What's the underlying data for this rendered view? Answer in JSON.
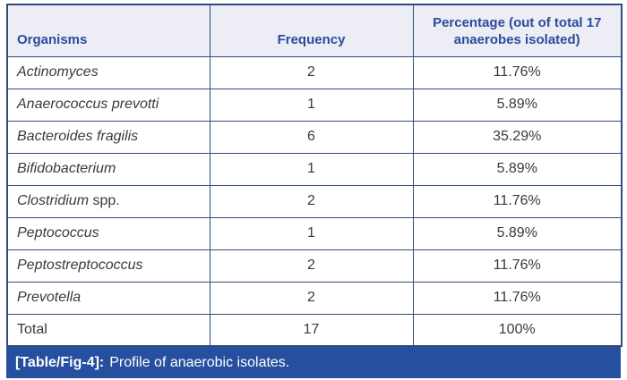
{
  "colors": {
    "page_bg": "#ffffff",
    "header_bg": "#ecedf5",
    "header_text": "#2b4c9b",
    "border": "#2e4d7e",
    "body_text": "#3a3a3a",
    "caption_bg": "#26509f",
    "caption_text": "#ffffff"
  },
  "table": {
    "headers": [
      "Organisms",
      "Frequency",
      "Percentage (out of total 17 anaerobes isolated)"
    ],
    "rows": [
      {
        "name_italic": "Actinomyces",
        "name_rest": "",
        "frequency": "2",
        "percentage": "11.76%"
      },
      {
        "name_italic": "Anaerococcus prevotti",
        "name_rest": "",
        "frequency": "1",
        "percentage": "5.89%"
      },
      {
        "name_italic": "Bacteroides fragilis",
        "name_rest": "",
        "frequency": "6",
        "percentage": "35.29%"
      },
      {
        "name_italic": "Bifidobacterium",
        "name_rest": "",
        "frequency": "1",
        "percentage": "5.89%"
      },
      {
        "name_italic": "Clostridium",
        "name_rest": " spp.",
        "frequency": "2",
        "percentage": "11.76%"
      },
      {
        "name_italic": "Peptococcus",
        "name_rest": "",
        "frequency": "1",
        "percentage": "5.89%"
      },
      {
        "name_italic": "Peptostreptococcus",
        "name_rest": "",
        "frequency": "2",
        "percentage": "11.76%"
      },
      {
        "name_italic": "Prevotella",
        "name_rest": "",
        "frequency": "2",
        "percentage": "11.76%"
      },
      {
        "name_italic": "",
        "name_rest": "Total",
        "frequency": "17",
        "percentage": "100%"
      }
    ],
    "caption": {
      "label": "[Table/Fig-4]:",
      "text": "Profile of anaerobic isolates."
    }
  }
}
